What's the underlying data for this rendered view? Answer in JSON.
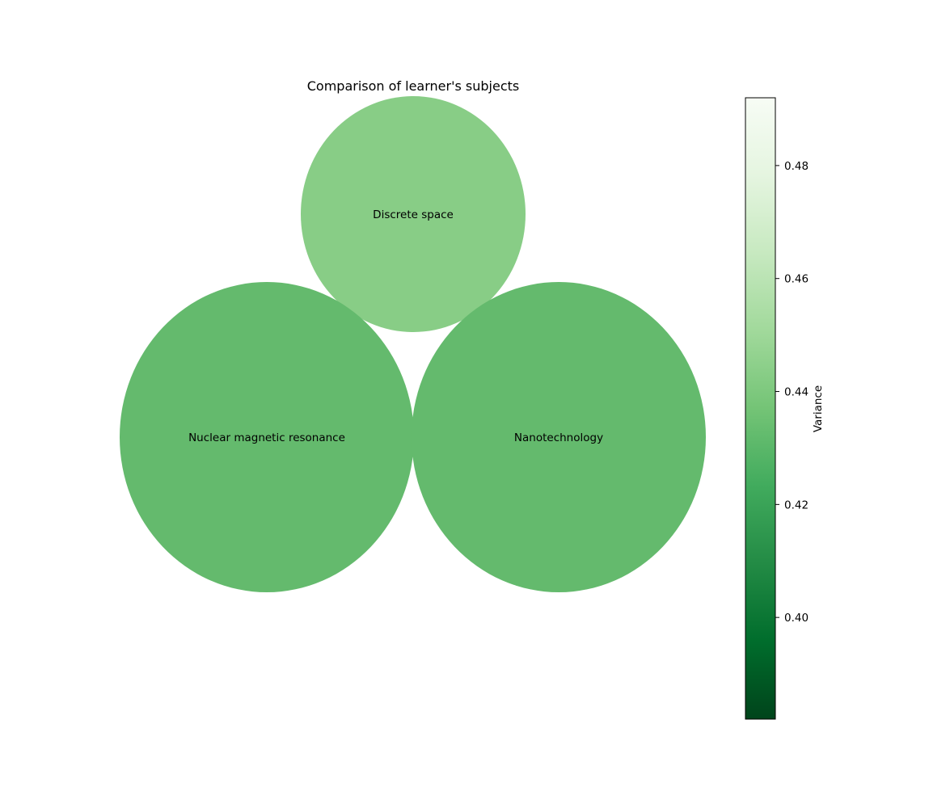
{
  "chart_data": {
    "type": "bubble",
    "title": "Comparison of learner's subjects",
    "colormap": "Greens_r",
    "colormap_stops": [
      "#00441b",
      "#006d2c",
      "#238b45",
      "#41ab5d",
      "#74c476",
      "#a1d99b",
      "#c7e9c0",
      "#e5f5e0",
      "#f7fcf5"
    ],
    "bubbles": [
      {
        "label": "Discrete space",
        "value": 0.45,
        "color": "#88cd86"
      },
      {
        "label": "Nuclear magnetic resonance",
        "value": 0.44,
        "color": "#64ba6d"
      },
      {
        "label": "Nanotechnology",
        "value": 0.44,
        "color": "#64ba6d"
      }
    ],
    "colorbar": {
      "label": "Variance",
      "range": [
        0.382,
        0.492
      ],
      "ticks": [
        "0.40",
        "0.42",
        "0.44",
        "0.46",
        "0.48"
      ]
    }
  }
}
